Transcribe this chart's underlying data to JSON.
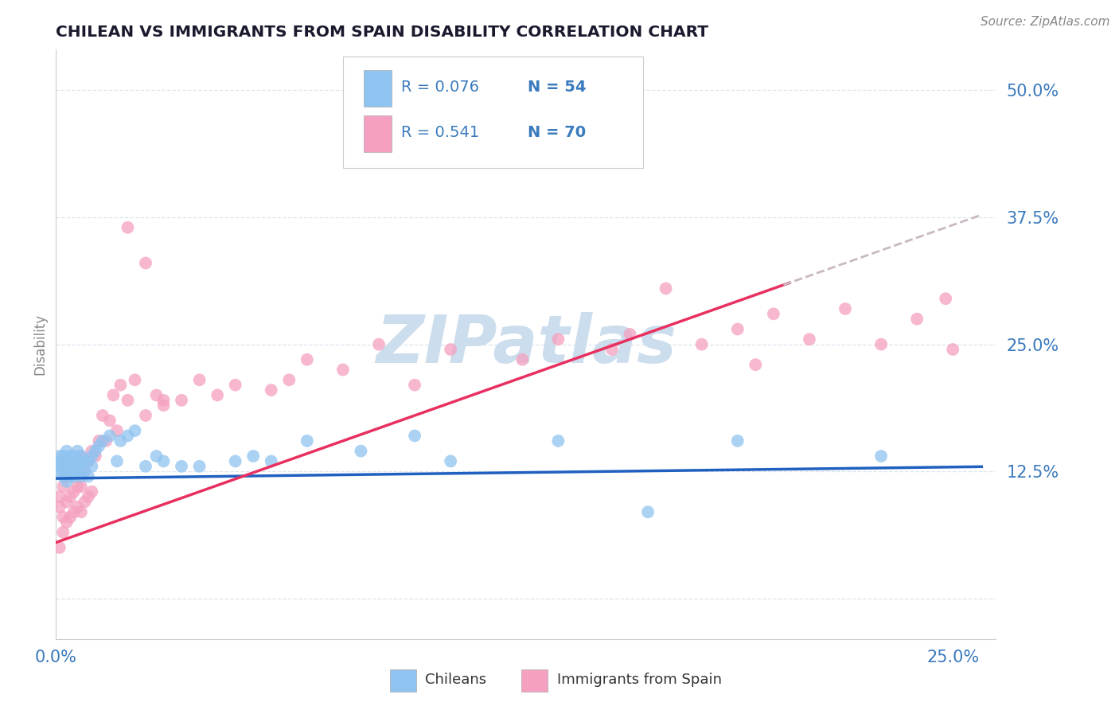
{
  "title": "CHILEAN VS IMMIGRANTS FROM SPAIN DISABILITY CORRELATION CHART",
  "source": "Source: ZipAtlas.com",
  "ylabel": "Disability",
  "ytick_vals": [
    0.0,
    0.125,
    0.25,
    0.375,
    0.5
  ],
  "ytick_labels": [
    "",
    "12.5%",
    "25.0%",
    "37.5%",
    "50.0%"
  ],
  "xtick_vals": [
    0.0,
    0.25
  ],
  "xtick_labels": [
    "0.0%",
    "25.0%"
  ],
  "xlim": [
    0.0,
    0.262
  ],
  "ylim": [
    -0.04,
    0.54
  ],
  "legend_r_blue": "R = 0.076",
  "legend_n_blue": "N = 54",
  "legend_r_pink": "R = 0.541",
  "legend_n_pink": "N = 70",
  "legend_label_blue": "Chileans",
  "legend_label_pink": "Immigrants from Spain",
  "chilean_color": "#90c4f0",
  "spain_color": "#f5a0c0",
  "trend_blue_color": "#2060c0",
  "trend_pink_color": "#e83060",
  "trend_dashed_color": "#c8b8c0",
  "watermark": "ZIPatlas",
  "watermark_color": "#ccdded",
  "grid_color": "#dde5ee",
  "title_color": "#1a1a2e",
  "tick_color": "#3a7abd",
  "trend_blue_intercept": 0.118,
  "trend_blue_slope": 0.045,
  "trend_pink_intercept": 0.055,
  "trend_pink_slope": 1.25,
  "trend_solid_end": 0.205,
  "chileans_x": [
    0.001,
    0.001,
    0.001,
    0.001,
    0.002,
    0.002,
    0.002,
    0.002,
    0.003,
    0.003,
    0.003,
    0.003,
    0.004,
    0.004,
    0.004,
    0.005,
    0.005,
    0.005,
    0.006,
    0.006,
    0.006,
    0.007,
    0.007,
    0.007,
    0.008,
    0.008,
    0.009,
    0.009,
    0.01,
    0.01,
    0.011,
    0.012,
    0.013,
    0.015,
    0.017,
    0.018,
    0.02,
    0.022,
    0.025,
    0.028,
    0.03,
    0.035,
    0.04,
    0.05,
    0.055,
    0.06,
    0.07,
    0.085,
    0.1,
    0.11,
    0.14,
    0.165,
    0.19,
    0.23
  ],
  "chileans_y": [
    0.125,
    0.13,
    0.135,
    0.14,
    0.12,
    0.125,
    0.13,
    0.14,
    0.115,
    0.125,
    0.135,
    0.145,
    0.12,
    0.13,
    0.14,
    0.12,
    0.13,
    0.14,
    0.125,
    0.135,
    0.145,
    0.12,
    0.13,
    0.14,
    0.125,
    0.135,
    0.12,
    0.135,
    0.13,
    0.14,
    0.145,
    0.15,
    0.155,
    0.16,
    0.135,
    0.155,
    0.16,
    0.165,
    0.13,
    0.14,
    0.135,
    0.13,
    0.13,
    0.135,
    0.14,
    0.135,
    0.155,
    0.145,
    0.16,
    0.135,
    0.155,
    0.085,
    0.155,
    0.14
  ],
  "spain_x": [
    0.001,
    0.001,
    0.001,
    0.002,
    0.002,
    0.002,
    0.003,
    0.003,
    0.003,
    0.004,
    0.004,
    0.004,
    0.005,
    0.005,
    0.005,
    0.006,
    0.006,
    0.006,
    0.007,
    0.007,
    0.007,
    0.008,
    0.008,
    0.009,
    0.009,
    0.01,
    0.01,
    0.011,
    0.012,
    0.013,
    0.014,
    0.015,
    0.016,
    0.017,
    0.018,
    0.02,
    0.022,
    0.025,
    0.028,
    0.03,
    0.035,
    0.04,
    0.045,
    0.05,
    0.06,
    0.065,
    0.07,
    0.08,
    0.09,
    0.1,
    0.11,
    0.115,
    0.13,
    0.14,
    0.155,
    0.16,
    0.17,
    0.18,
    0.19,
    0.195,
    0.2,
    0.21,
    0.22,
    0.23,
    0.24,
    0.248,
    0.25,
    0.02,
    0.025,
    0.03
  ],
  "spain_y": [
    0.05,
    0.09,
    0.1,
    0.065,
    0.08,
    0.11,
    0.075,
    0.095,
    0.12,
    0.08,
    0.1,
    0.13,
    0.085,
    0.105,
    0.125,
    0.09,
    0.11,
    0.135,
    0.085,
    0.11,
    0.14,
    0.095,
    0.125,
    0.1,
    0.135,
    0.105,
    0.145,
    0.14,
    0.155,
    0.18,
    0.155,
    0.175,
    0.2,
    0.165,
    0.21,
    0.195,
    0.215,
    0.18,
    0.2,
    0.195,
    0.195,
    0.215,
    0.2,
    0.21,
    0.205,
    0.215,
    0.235,
    0.225,
    0.25,
    0.21,
    0.245,
    0.455,
    0.235,
    0.255,
    0.245,
    0.26,
    0.305,
    0.25,
    0.265,
    0.23,
    0.28,
    0.255,
    0.285,
    0.25,
    0.275,
    0.295,
    0.245,
    0.365,
    0.33,
    0.19
  ]
}
